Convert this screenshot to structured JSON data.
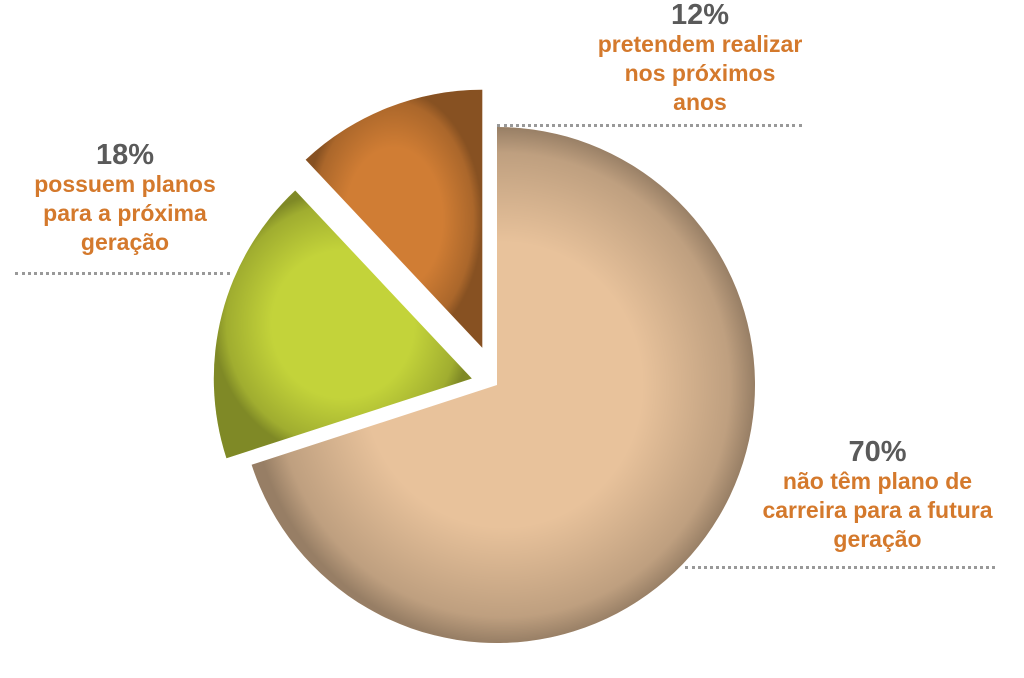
{
  "chart_data": {
    "type": "pie",
    "categories": [
      "não têm plano de carreira para a futura geração",
      "possuem planos para a próxima geração",
      "pretendem realizar nos próximos anos"
    ],
    "values": [
      70,
      18,
      12
    ],
    "value_labels": [
      "70%",
      "18%",
      "12%"
    ],
    "colors": [
      "#e8c29b",
      "#c3d33a",
      "#d07d34"
    ]
  }
}
